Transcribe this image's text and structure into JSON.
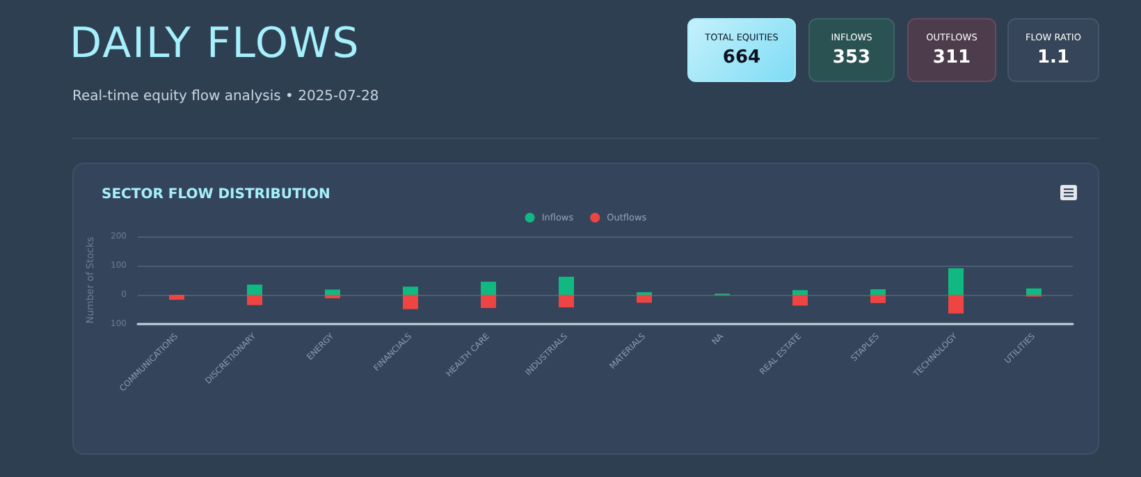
{
  "chart_data": [
    {
      "type": "other",
      "title": "DAILY FLOWS",
      "subtitle": "Real-time equity flow analysis • 2025-07-28",
      "annotations": [
        "TOTAL EQUITIES\n664",
        "INFLOWS\n353",
        "OUTFLOWS\n311",
        "FLOW RATIO\n1.1"
      ]
    },
    {
      "type": "bar",
      "title": "SECTOR FLOW DISTRIBUTION",
      "ylabel": "Number of Stocks",
      "categories": [
        "COMMUNICATIONS",
        "DISCRETIONARY",
        "ENERGY",
        "FINANCIALS",
        "HEALTH CARE",
        "INDUSTRIALS",
        "MATERIALS",
        "NA",
        "REAL ESTATE",
        "STAPLES",
        "TECHNOLOGY",
        "UTILITIES"
      ],
      "series": [
        {
          "name": "Inflows",
          "color": "#10b981",
          "values": [
            0,
            35,
            18,
            28,
            45,
            62,
            9,
            4,
            16,
            19,
            91,
            22
          ]
        },
        {
          "name": "Outflows",
          "color": "#ef4444",
          "values": [
            -17,
            -35,
            -12,
            -49,
            -45,
            -43,
            -27,
            -2,
            -37,
            -28,
            -64,
            -6
          ]
        }
      ],
      "stacked": true,
      "ylim": [
        -100,
        200
      ],
      "yticks": [
        {
          "value": -100,
          "label": "100"
        },
        0,
        100,
        200
      ],
      "grid": "y",
      "legend": "top"
    }
  ]
}
